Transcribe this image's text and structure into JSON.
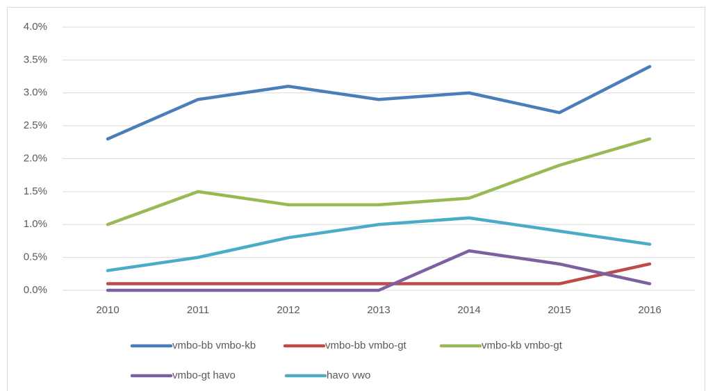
{
  "chart_data": {
    "type": "line",
    "categories": [
      "2010",
      "2011",
      "2012",
      "2013",
      "2014",
      "2015",
      "2016"
    ],
    "series": [
      {
        "name": "vmbo-bb vmbo-kb",
        "color": "#4a7ebb",
        "values": [
          2.3,
          2.9,
          3.1,
          2.9,
          3.0,
          2.7,
          3.4
        ]
      },
      {
        "name": "vmbo-bb vmbo-gt",
        "color": "#be4b48",
        "values": [
          0.1,
          0.1,
          0.1,
          0.1,
          0.1,
          0.1,
          0.4
        ]
      },
      {
        "name": "vmbo-kb vmbo-gt",
        "color": "#98b954",
        "values": [
          1.0,
          1.5,
          1.3,
          1.3,
          1.4,
          1.9,
          2.3
        ]
      },
      {
        "name": "vmbo-gt havo",
        "color": "#7d60a0",
        "values": [
          0,
          0,
          0,
          0,
          0.6,
          0.4,
          0.1
        ]
      },
      {
        "name": "havo vwo",
        "color": "#4bacc6",
        "values": [
          0.3,
          0.5,
          0.8,
          1.0,
          1.1,
          0.9,
          0.7
        ]
      }
    ],
    "ylim": [
      0,
      4
    ],
    "yticks": [
      {
        "value": 0,
        "label": "0.0%"
      },
      {
        "value": 0.5,
        "label": "0.5%"
      },
      {
        "value": 1,
        "label": "1.0%"
      },
      {
        "value": 1.5,
        "label": "1.5%"
      },
      {
        "value": 2,
        "label": "2.0%"
      },
      {
        "value": 2.5,
        "label": "2.5%"
      },
      {
        "value": 3,
        "label": "3.0%"
      },
      {
        "value": 3.5,
        "label": "3.5%"
      },
      {
        "value": 4,
        "label": "4.0%"
      }
    ],
    "grid": true,
    "legend": "bottom"
  }
}
